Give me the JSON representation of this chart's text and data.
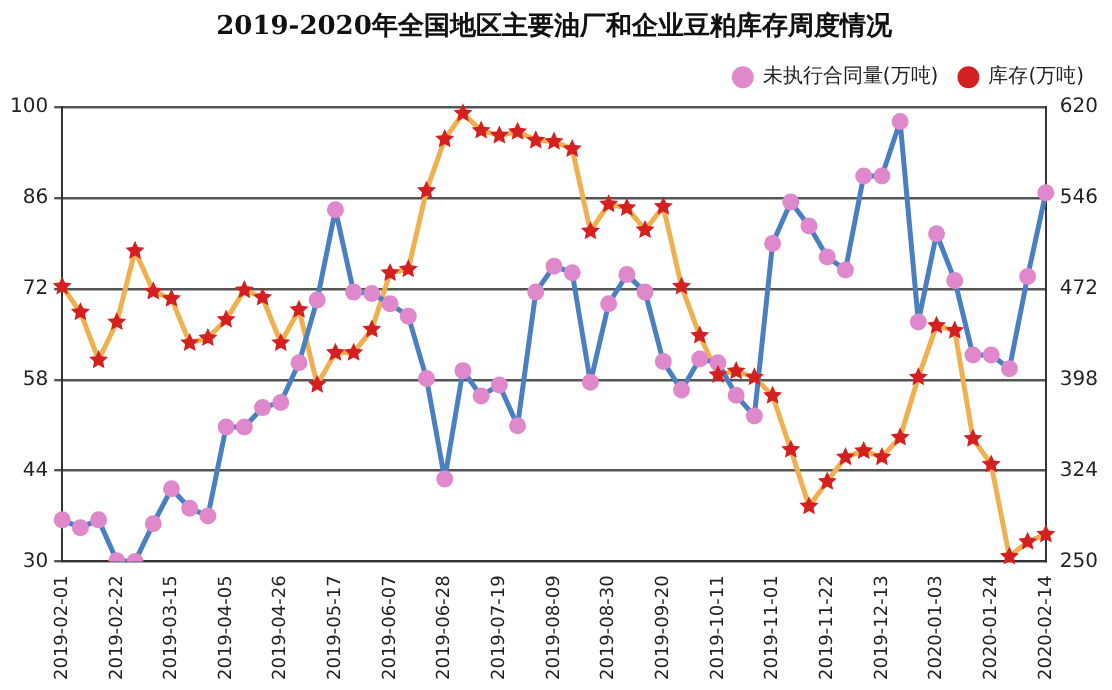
{
  "chart_data": {
    "type": "line",
    "title": "2019-2020年全国地区主要油厂和企业豆粕库存周度情况",
    "categories": [
      "2019-02-01",
      null,
      null,
      "2019-02-22",
      null,
      null,
      "2019-03-15",
      null,
      null,
      "2019-04-05",
      null,
      null,
      "2019-04-26",
      null,
      null,
      "2019-05-17",
      null,
      null,
      "2019-06-07",
      null,
      null,
      "2019-06-28",
      null,
      null,
      "2019-07-19",
      null,
      null,
      "2019-08-09",
      null,
      null,
      "2019-08-30",
      null,
      null,
      "2019-09-20",
      null,
      null,
      "2019-10-11",
      null,
      null,
      "2019-11-01",
      null,
      null,
      "2019-11-22",
      null,
      null,
      "2019-12-13",
      null,
      null,
      "2020-01-03",
      null,
      null,
      "2020-01-24",
      null,
      null,
      "2020-02-14"
    ],
    "series": [
      {
        "name": "未执行合同量(万吨)",
        "color": "#4a7fc1",
        "marker": "circle",
        "values": [
          36.4,
          35.2,
          36.4,
          30.1,
          30,
          35.8,
          41.2,
          38.2,
          37,
          50.7,
          50.7,
          53.7,
          54.5,
          60.6,
          70.3,
          84.2,
          71.5,
          71.3,
          69.7,
          67.8,
          58.2,
          42.7,
          59.4,
          55.5,
          57.2,
          50.9,
          71.5,
          75.5,
          74.5,
          57.6,
          69.7,
          74.2,
          71.5,
          60.8,
          56.4,
          61.2,
          60.6,
          55.6,
          52.4,
          79,
          85.4,
          81.7,
          76.9,
          74.9,
          89.4,
          89.4,
          97.8,
          66.9,
          80.5,
          73.3,
          61.8,
          61.8,
          59.7,
          73.9,
          86.8
        ]
      },
      {
        "name": "库存(万吨)",
        "color": "#f0b050",
        "marker": "star",
        "axis": "y2",
        "values": [
          474,
          453,
          414,
          445,
          503,
          470,
          464,
          428,
          432,
          447,
          471,
          465,
          428,
          455,
          394,
          420,
          420,
          439,
          485,
          488,
          552,
          594,
          615,
          601,
          597,
          600,
          593,
          592,
          586,
          519,
          541,
          538,
          520,
          539,
          474,
          434,
          402,
          405,
          400,
          385,
          341,
          295,
          315,
          335,
          340,
          335,
          351,
          400,
          442,
          438,
          350,
          329,
          254,
          266,
          272
        ]
      }
    ],
    "ylim": [
      30,
      100
    ],
    "yticks": [
      30,
      44,
      58,
      72,
      86,
      100
    ],
    "y2lim": [
      250,
      620
    ],
    "y2ticks": [
      250,
      324,
      398,
      472,
      546,
      620
    ],
    "grid": "y",
    "legend": "top"
  }
}
